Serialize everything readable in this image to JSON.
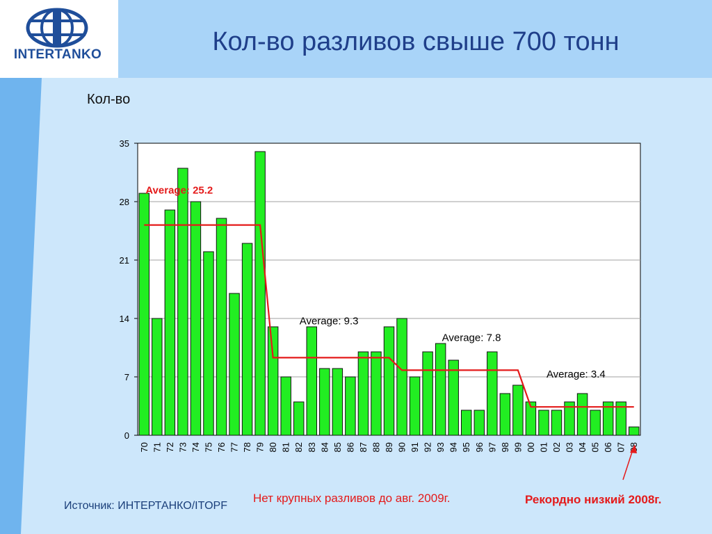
{
  "logo": {
    "text": "INTERTANKO"
  },
  "title": "Кол-во разливов свыше 700 тонн",
  "colors": {
    "bar": "#22ee22",
    "bar_stroke": "#111111",
    "average_line": "#e41a1a",
    "header_bg": "#a9d4f8",
    "content_bg": "#cde7fb",
    "left_stripe": "#6fb4ee",
    "title": "#1f3f8a"
  },
  "chart_data": {
    "type": "bar",
    "ylabel": "Кол-во",
    "xlabel": "",
    "ylim": [
      0,
      35
    ],
    "yticks": [
      0,
      7,
      14,
      21,
      28,
      35
    ],
    "grid": true,
    "categories": [
      "70",
      "71",
      "72",
      "73",
      "74",
      "75",
      "76",
      "77",
      "78",
      "79",
      "80",
      "81",
      "82",
      "83",
      "84",
      "85",
      "86",
      "87",
      "88",
      "89",
      "90",
      "91",
      "92",
      "93",
      "94",
      "95",
      "96",
      "97",
      "98",
      "99",
      "00",
      "01",
      "02",
      "03",
      "04",
      "05",
      "06",
      "07",
      "08"
    ],
    "values": [
      29,
      14,
      27,
      32,
      28,
      22,
      26,
      17,
      23,
      34,
      13,
      7,
      4,
      13,
      8,
      8,
      7,
      10,
      10,
      13,
      14,
      7,
      10,
      11,
      9,
      3,
      3,
      10,
      5,
      6,
      4,
      3,
      3,
      4,
      5,
      3,
      4,
      4,
      1
    ],
    "averages": [
      {
        "label": "Average: 25.2",
        "value": 25.2,
        "from": "70",
        "to": "79",
        "highlight": true
      },
      {
        "label": "Average: 9.3",
        "value": 9.3,
        "from": "80",
        "to": "89",
        "highlight": false
      },
      {
        "label": "Average: 7.8",
        "value": 7.8,
        "from": "90",
        "to": "99",
        "highlight": false
      },
      {
        "label": "Average: 3.4",
        "value": 3.4,
        "from": "00",
        "to": "08",
        "highlight": false
      }
    ]
  },
  "note": "Нет крупных разливов до авг. 2009г.",
  "record": "Рекордно низкий 2008г.",
  "source": "Источник: ИНТЕРТАНКО/ITOPF"
}
